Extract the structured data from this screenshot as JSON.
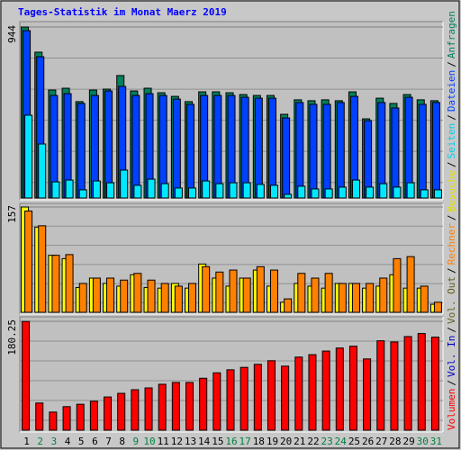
{
  "chart_data": {
    "type": "bar",
    "title": "Tages-Statistik im Monat Maerz 2019",
    "categories": [
      "1",
      "2",
      "3",
      "4",
      "5",
      "6",
      "7",
      "8",
      "9",
      "10",
      "11",
      "12",
      "13",
      "14",
      "15",
      "16",
      "17",
      "18",
      "19",
      "20",
      "21",
      "22",
      "23",
      "24",
      "25",
      "26",
      "27",
      "28",
      "29",
      "30",
      "31"
    ],
    "category_colors": [
      "#000000",
      "#008040",
      "#008040",
      "#000000",
      "#000000",
      "#000000",
      "#000000",
      "#000000",
      "#008040",
      "#008040",
      "#000000",
      "#000000",
      "#000000",
      "#000000",
      "#000000",
      "#008040",
      "#008040",
      "#000000",
      "#000000",
      "#000000",
      "#000000",
      "#000000",
      "#008040",
      "#008040",
      "#000000",
      "#000000",
      "#000000",
      "#000000",
      "#000000",
      "#008040",
      "#008040"
    ],
    "legend": [
      {
        "name": "Volumen",
        "color": "#ff0000"
      },
      {
        "name": "Vol. In",
        "color": "#0000c0"
      },
      {
        "name": "Vol. Out",
        "color": "#606020"
      },
      {
        "name": "Rechner",
        "color": "#ff8000"
      },
      {
        "name": "Besuche",
        "color": "#e0e000"
      },
      {
        "name": "Seiten",
        "color": "#00d0f0"
      },
      {
        "name": "Dateien",
        "color": "#0040ff"
      },
      {
        "name": "Anfragen",
        "color": "#008060"
      }
    ],
    "legend_separator": "/",
    "panels": [
      {
        "ylim": [
          0,
          944
        ],
        "yticks": [
          944
        ],
        "series": [
          {
            "color": "#00805c",
            "values": [
              944,
              805,
              596,
              606,
              532,
              596,
              601,
              676,
              591,
              606,
              581,
              561,
              532,
              586,
              586,
              581,
              571,
              566,
              566,
              462,
              542,
              537,
              542,
              537,
              586,
              437,
              551,
              522,
              571,
              542,
              537
            ]
          },
          {
            "color": "#0040ff",
            "values": [
              924,
              780,
              566,
              576,
              522,
              566,
              591,
              616,
              566,
              576,
              566,
              546,
              517,
              566,
              566,
              566,
              556,
              551,
              551,
              442,
              527,
              517,
              517,
              527,
              561,
              427,
              527,
              497,
              556,
              517,
              527
            ]
          },
          {
            "color": "#00e8ff",
            "values": [
              457,
              298,
              89,
              99,
              45,
              94,
              84,
              154,
              70,
              104,
              79,
              55,
              55,
              94,
              79,
              84,
              84,
              75,
              70,
              20,
              65,
              50,
              50,
              60,
              99,
              60,
              79,
              60,
              84,
              45,
              45
            ]
          }
        ]
      },
      {
        "ylim": [
          0,
          157
        ],
        "yticks": [
          157
        ],
        "series": [
          {
            "color": "#ffff00",
            "values": [
              157,
              127,
              85,
              80,
              37,
              51,
              43,
              39,
              56,
              37,
              36,
              43,
              36,
              72,
              51,
              39,
              51,
              63,
              39,
              15,
              43,
              39,
              36,
              43,
              43,
              36,
              39,
              56,
              36,
              36,
              12
            ]
          },
          {
            "color": "#ff8000",
            "values": [
              151,
              129,
              85,
              86,
              43,
              51,
              51,
              48,
              58,
              48,
              43,
              39,
              43,
              68,
              60,
              63,
              51,
              68,
              63,
              20,
              58,
              51,
              58,
              43,
              43,
              43,
              51,
              80,
              83,
              39,
              15
            ]
          }
        ]
      },
      {
        "ylim": [
          0,
          180.25
        ],
        "yticks": [
          180.25
        ],
        "series": [
          {
            "color": "#ff0000",
            "values": [
              180,
              45,
              30,
              39,
              43,
              48,
              55,
              61,
              67,
              70,
              76,
              79,
              79,
              86,
              95,
              100,
              104,
              109,
              115,
              106,
              121,
              125,
              131,
              136,
              139,
              118,
              148,
              146,
              155,
              160,
              154
            ]
          }
        ]
      }
    ]
  }
}
